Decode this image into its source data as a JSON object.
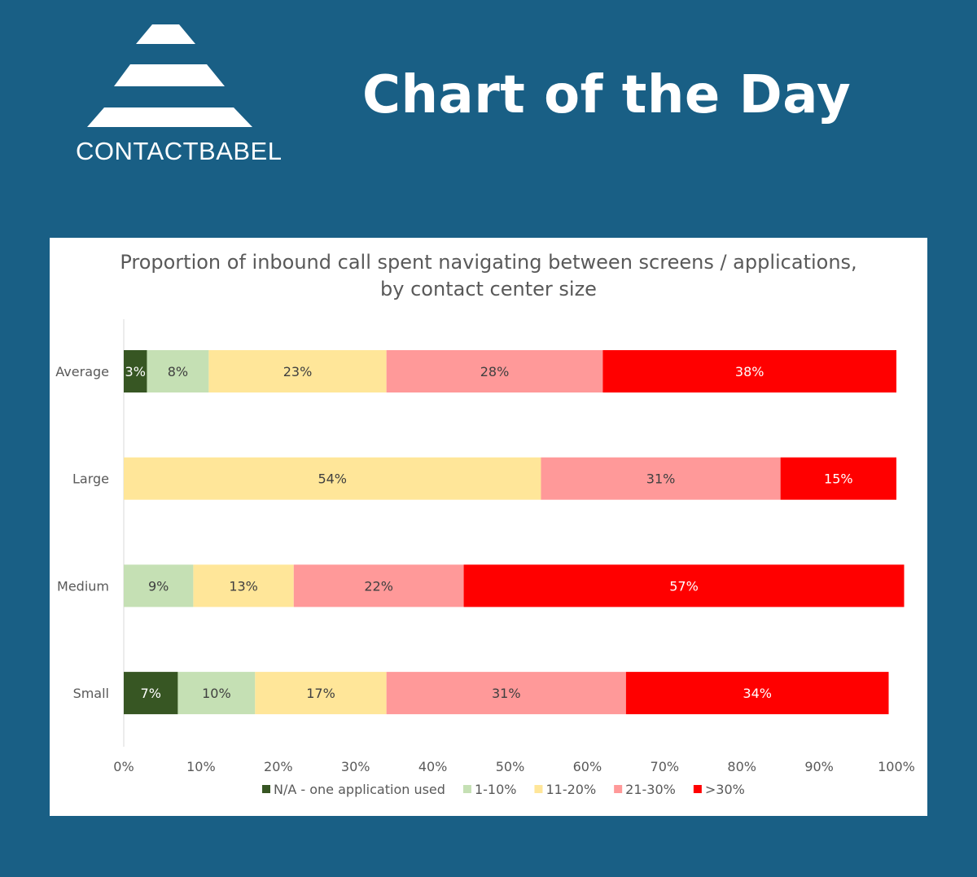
{
  "brand": {
    "logo_text": "CONTACTBABEL",
    "headline": "Chart of the Day"
  },
  "chart_data": {
    "type": "bar",
    "orientation": "horizontal",
    "stacked": true,
    "title_line1": "Proportion of inbound call spent navigating between screens / applications,",
    "title_line2": "by contact center size",
    "categories": [
      "Average",
      "Large",
      "Medium",
      "Small"
    ],
    "xlim": [
      0,
      100
    ],
    "x_ticks": [
      "0%",
      "10%",
      "20%",
      "30%",
      "40%",
      "50%",
      "60%",
      "70%",
      "80%",
      "90%",
      "100%"
    ],
    "grid": false,
    "legend_position": "bottom",
    "series": [
      {
        "name": "N/A - one application used",
        "color": "#375623",
        "values": [
          3,
          0,
          0,
          7
        ]
      },
      {
        "name": "1-10%",
        "color": "#c5e0b4",
        "values": [
          8,
          0,
          9,
          10
        ]
      },
      {
        "name": "11-20%",
        "color": "#ffe699",
        "values": [
          23,
          54,
          13,
          17
        ]
      },
      {
        "name": "21-30%",
        "color": "#ff9999",
        "values": [
          28,
          31,
          22,
          31
        ]
      },
      {
        "name": ">30%",
        "color": "#ff0000",
        "values": [
          38,
          15,
          57,
          34
        ]
      }
    ],
    "label_colors": [
      "#ffffff",
      "#404040",
      "#404040",
      "#404040",
      "#ffffff"
    ]
  }
}
